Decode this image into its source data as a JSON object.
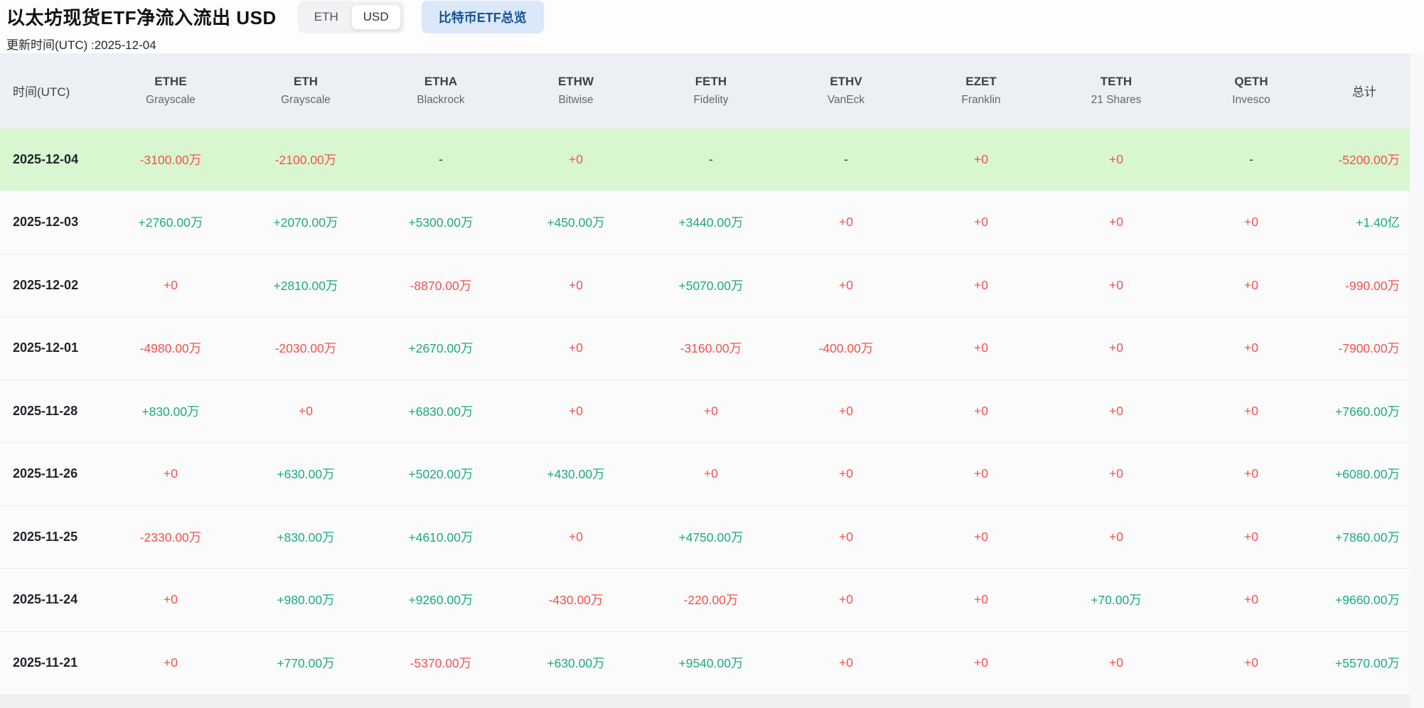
{
  "header": {
    "title": "以太坊现货ETF净流入流出 USD",
    "toggle": {
      "options": [
        "ETH",
        "USD"
      ],
      "selected": "USD"
    },
    "btc_overview_label": "比特币ETF总览",
    "update_time": "更新时间(UTC) :2025-12-04"
  },
  "colors": {
    "positive": "#1eaa7d",
    "negative": "#f4514c",
    "zero_value": "#f4514c",
    "highlight_row_bg": "#d8f7d0",
    "header_bg": "#edf0f3",
    "btc_button_bg": "#dbe8f9",
    "btc_button_text": "#175298"
  },
  "table": {
    "time_column_label": "时间(UTC)",
    "total_column_label": "总计",
    "columns": [
      {
        "ticker": "ETHE",
        "issuer": "Grayscale"
      },
      {
        "ticker": "ETH",
        "issuer": "Grayscale"
      },
      {
        "ticker": "ETHA",
        "issuer": "Blackrock"
      },
      {
        "ticker": "ETHW",
        "issuer": "Bitwise"
      },
      {
        "ticker": "FETH",
        "issuer": "Fidelity"
      },
      {
        "ticker": "ETHV",
        "issuer": "VanEck"
      },
      {
        "ticker": "EZET",
        "issuer": "Franklin"
      },
      {
        "ticker": "TETH",
        "issuer": "21 Shares"
      },
      {
        "ticker": "QETH",
        "issuer": "Invesco"
      }
    ],
    "rows": [
      {
        "date": "2025-12-04",
        "highlighted": true,
        "values": [
          "-3100.00万",
          "-2100.00万",
          "-",
          "+0",
          "-",
          "-",
          "+0",
          "+0",
          "-"
        ],
        "total": "-5200.00万"
      },
      {
        "date": "2025-12-03",
        "highlighted": false,
        "values": [
          "+2760.00万",
          "+2070.00万",
          "+5300.00万",
          "+450.00万",
          "+3440.00万",
          "+0",
          "+0",
          "+0",
          "+0"
        ],
        "total": "+1.40亿"
      },
      {
        "date": "2025-12-02",
        "highlighted": false,
        "values": [
          "+0",
          "+2810.00万",
          "-8870.00万",
          "+0",
          "+5070.00万",
          "+0",
          "+0",
          "+0",
          "+0"
        ],
        "total": "-990.00万"
      },
      {
        "date": "2025-12-01",
        "highlighted": false,
        "values": [
          "-4980.00万",
          "-2030.00万",
          "+2670.00万",
          "+0",
          "-3160.00万",
          "-400.00万",
          "+0",
          "+0",
          "+0"
        ],
        "total": "-7900.00万"
      },
      {
        "date": "2025-11-28",
        "highlighted": false,
        "values": [
          "+830.00万",
          "+0",
          "+6830.00万",
          "+0",
          "+0",
          "+0",
          "+0",
          "+0",
          "+0"
        ],
        "total": "+7660.00万"
      },
      {
        "date": "2025-11-26",
        "highlighted": false,
        "values": [
          "+0",
          "+630.00万",
          "+5020.00万",
          "+430.00万",
          "+0",
          "+0",
          "+0",
          "+0",
          "+0"
        ],
        "total": "+6080.00万"
      },
      {
        "date": "2025-11-25",
        "highlighted": false,
        "values": [
          "-2330.00万",
          "+830.00万",
          "+4610.00万",
          "+0",
          "+4750.00万",
          "+0",
          "+0",
          "+0",
          "+0"
        ],
        "total": "+7860.00万"
      },
      {
        "date": "2025-11-24",
        "highlighted": false,
        "values": [
          "+0",
          "+980.00万",
          "+9260.00万",
          "-430.00万",
          "-220.00万",
          "+0",
          "+0",
          "+70.00万",
          "+0"
        ],
        "total": "+9660.00万"
      },
      {
        "date": "2025-11-21",
        "highlighted": false,
        "values": [
          "+0",
          "+770.00万",
          "-5370.00万",
          "+630.00万",
          "+9540.00万",
          "+0",
          "+0",
          "+0",
          "+0"
        ],
        "total": "+5570.00万"
      }
    ]
  }
}
